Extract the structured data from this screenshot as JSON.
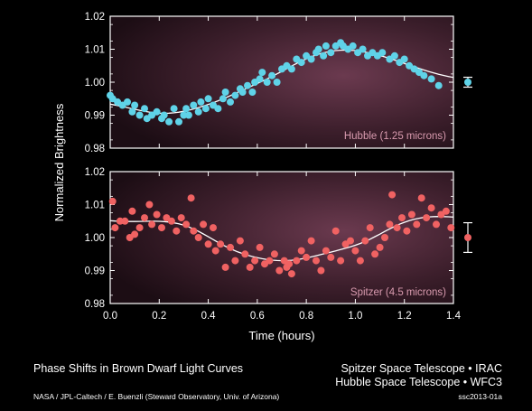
{
  "page": {
    "title": "Phase Shifts in Brown Dwarf Light Curves",
    "instrument_1": "Spitzer Space Telescope • IRAC",
    "instrument_2": "Hubble Space Telescope • WFC3",
    "credit": "NASA / JPL-Caltech / E. Buenzli (Steward Observatory, Univ. of Arizona)",
    "image_id": "ssc2013-01a"
  },
  "chart_data": {
    "type": "scatter",
    "title": "Phase Shifts in Brown Dwarf Light Curves",
    "xlabel": "Time (hours)",
    "ylabel": "Normalized Brightness",
    "xlim": [
      0,
      1.4
    ],
    "xticks": [
      "0.0",
      "0.2",
      "0.4",
      "0.6",
      "0.8",
      "1.0",
      "1.2",
      "1.4"
    ],
    "panels": [
      {
        "name": "Hubble (1.25 microns)",
        "color": "#5fd3e8",
        "ylim": [
          0.98,
          1.02
        ],
        "yticks": [
          "0.98",
          "0.99",
          "1.00",
          "1.01",
          "1.02"
        ],
        "error_bar": {
          "value": 1.0,
          "err": 0.0015
        },
        "points": [
          [
            0.0,
            0.996
          ],
          [
            0.01,
            0.995
          ],
          [
            0.03,
            0.994
          ],
          [
            0.05,
            0.993
          ],
          [
            0.07,
            0.994
          ],
          [
            0.09,
            0.991
          ],
          [
            0.1,
            0.993
          ],
          [
            0.12,
            0.99
          ],
          [
            0.14,
            0.992
          ],
          [
            0.15,
            0.989
          ],
          [
            0.17,
            0.99
          ],
          [
            0.19,
            0.991
          ],
          [
            0.21,
            0.989
          ],
          [
            0.22,
            0.99
          ],
          [
            0.24,
            0.988
          ],
          [
            0.26,
            0.992
          ],
          [
            0.28,
            0.988
          ],
          [
            0.3,
            0.99
          ],
          [
            0.31,
            0.992
          ],
          [
            0.32,
            0.99
          ],
          [
            0.34,
            0.993
          ],
          [
            0.36,
            0.991
          ],
          [
            0.37,
            0.994
          ],
          [
            0.39,
            0.992
          ],
          [
            0.4,
            0.995
          ],
          [
            0.42,
            0.993
          ],
          [
            0.44,
            0.992
          ],
          [
            0.46,
            0.995
          ],
          [
            0.47,
            0.997
          ],
          [
            0.49,
            0.994
          ],
          [
            0.51,
            0.996
          ],
          [
            0.53,
            0.998
          ],
          [
            0.54,
            0.997
          ],
          [
            0.56,
            0.999
          ],
          [
            0.58,
            0.997
          ],
          [
            0.59,
            1.0
          ],
          [
            0.61,
            1.001
          ],
          [
            0.62,
            1.003
          ],
          [
            0.64,
            1.0
          ],
          [
            0.66,
            1.002
          ],
          [
            0.68,
            1.0
          ],
          [
            0.7,
            1.004
          ],
          [
            0.72,
            1.005
          ],
          [
            0.74,
            1.004
          ],
          [
            0.76,
            1.007
          ],
          [
            0.78,
            1.006
          ],
          [
            0.8,
            1.008
          ],
          [
            0.82,
            1.007
          ],
          [
            0.84,
            1.009
          ],
          [
            0.85,
            1.01
          ],
          [
            0.87,
            1.008
          ],
          [
            0.88,
            1.011
          ],
          [
            0.9,
            1.009
          ],
          [
            0.92,
            1.011
          ],
          [
            0.94,
            1.012
          ],
          [
            0.95,
            1.011
          ],
          [
            0.97,
            1.01
          ],
          [
            0.99,
            1.011
          ],
          [
            1.01,
            1.009
          ],
          [
            1.03,
            1.01
          ],
          [
            1.05,
            1.008
          ],
          [
            1.07,
            1.009
          ],
          [
            1.09,
            1.008
          ],
          [
            1.11,
            1.009
          ],
          [
            1.14,
            1.007
          ],
          [
            1.16,
            1.008
          ],
          [
            1.18,
            1.006
          ],
          [
            1.2,
            1.007
          ],
          [
            1.22,
            1.005
          ],
          [
            1.24,
            1.004
          ],
          [
            1.26,
            1.003
          ],
          [
            1.28,
            1.002
          ],
          [
            1.31,
            1.001
          ],
          [
            1.34,
            0.999
          ]
        ]
      },
      {
        "name": "Spitzer (4.5 microns)",
        "color": "#f06262",
        "ylim": [
          0.98,
          1.02
        ],
        "yticks": [
          "0.98",
          "0.99",
          "1.00",
          "1.01",
          "1.02"
        ],
        "error_bar": {
          "value": 1.0,
          "err": 0.0045
        },
        "points": [
          [
            0.01,
            1.011
          ],
          [
            0.02,
            1.003
          ],
          [
            0.04,
            1.005
          ],
          [
            0.06,
            1.005
          ],
          [
            0.08,
            1.0
          ],
          [
            0.09,
            1.008
          ],
          [
            0.1,
            1.001
          ],
          [
            0.12,
            1.003
          ],
          [
            0.14,
            1.006
          ],
          [
            0.16,
            1.01
          ],
          [
            0.17,
            1.004
          ],
          [
            0.19,
            1.007
          ],
          [
            0.21,
            1.003
          ],
          [
            0.23,
            1.006
          ],
          [
            0.25,
            1.005
          ],
          [
            0.27,
            1.002
          ],
          [
            0.29,
            1.006
          ],
          [
            0.31,
            1.004
          ],
          [
            0.33,
            1.012
          ],
          [
            0.34,
            1.002
          ],
          [
            0.36,
            1.0
          ],
          [
            0.38,
            1.004
          ],
          [
            0.4,
            0.998
          ],
          [
            0.42,
            1.003
          ],
          [
            0.43,
            0.996
          ],
          [
            0.45,
            0.998
          ],
          [
            0.47,
            0.991
          ],
          [
            0.49,
            0.997
          ],
          [
            0.51,
            0.993
          ],
          [
            0.53,
            0.999
          ],
          [
            0.55,
            0.995
          ],
          [
            0.57,
            0.991
          ],
          [
            0.59,
            0.993
          ],
          [
            0.61,
            0.997
          ],
          [
            0.63,
            0.992
          ],
          [
            0.65,
            0.993
          ],
          [
            0.67,
            0.995
          ],
          [
            0.69,
            0.99
          ],
          [
            0.71,
            0.993
          ],
          [
            0.72,
            0.991
          ],
          [
            0.73,
            0.992
          ],
          [
            0.74,
            0.989
          ],
          [
            0.76,
            0.993
          ],
          [
            0.78,
            0.996
          ],
          [
            0.8,
            0.994
          ],
          [
            0.82,
            0.999
          ],
          [
            0.84,
            0.993
          ],
          [
            0.86,
            0.99
          ],
          [
            0.88,
            0.996
          ],
          [
            0.9,
            0.994
          ],
          [
            0.92,
            1.002
          ],
          [
            0.94,
            0.993
          ],
          [
            0.96,
            0.998
          ],
          [
            0.98,
            0.999
          ],
          [
            1.0,
            0.996
          ],
          [
            1.02,
            0.993
          ],
          [
            1.04,
            0.999
          ],
          [
            1.06,
            1.003
          ],
          [
            1.08,
            0.995
          ],
          [
            1.1,
            0.997
          ],
          [
            1.12,
            1.0
          ],
          [
            1.14,
            1.004
          ],
          [
            1.15,
            1.013
          ],
          [
            1.17,
            1.003
          ],
          [
            1.19,
            1.006
          ],
          [
            1.21,
            1.002
          ],
          [
            1.23,
            1.007
          ],
          [
            1.25,
            1.004
          ],
          [
            1.27,
            1.012
          ],
          [
            1.29,
            1.006
          ],
          [
            1.31,
            1.009
          ],
          [
            1.33,
            1.004
          ],
          [
            1.35,
            1.007
          ],
          [
            1.37,
            1.008
          ],
          [
            1.39,
            1.003
          ]
        ]
      }
    ]
  }
}
